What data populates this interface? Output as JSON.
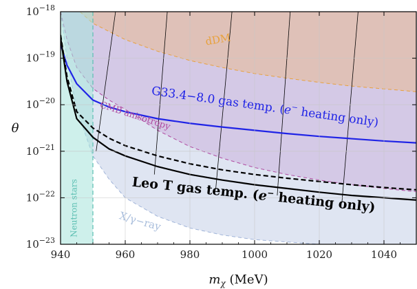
{
  "chart_data": {
    "type": "area",
    "xlabel": "m",
    "xlabel_sub": "χ",
    "xlabel_unit": "(MeV)",
    "ylabel": "θ",
    "xlim": [
      940,
      1050
    ],
    "ylim_log10": [
      -23,
      -18
    ],
    "x_ticks": [
      940,
      960,
      980,
      1000,
      1020,
      1040
    ],
    "x_tick_labels": [
      "940",
      "960",
      "980",
      "1000",
      "1020",
      "1040"
    ],
    "y_ticks": [
      {
        "exp": -23,
        "base": "10",
        "sup": "−23"
      },
      {
        "exp": -22,
        "base": "10",
        "sup": "−22"
      },
      {
        "exp": -21,
        "base": "10",
        "sup": "−21"
      },
      {
        "exp": -20,
        "base": "10",
        "sup": "−20"
      },
      {
        "exp": -19,
        "base": "10",
        "sup": "−19"
      },
      {
        "exp": -18,
        "base": "10",
        "sup": "−18"
      }
    ],
    "grid": true,
    "regions": [
      {
        "name": "X/γ-ray",
        "color": "#b7c6e2",
        "opacity": 0.45,
        "x": [
          940,
          942,
          945,
          950,
          955,
          960,
          970,
          980,
          990,
          1000,
          1010,
          1020,
          1030,
          1040,
          1050
        ],
        "log10_theta": [
          -18.0,
          -19.0,
          -20.1,
          -21.1,
          -21.6,
          -22.0,
          -22.4,
          -22.65,
          -22.8,
          -22.9,
          -22.95,
          -23.0,
          -23.0,
          -23.0,
          -23.0
        ]
      },
      {
        "name": "CMB anisotropy",
        "color": "#c8a6d8",
        "opacity": 0.45,
        "x": [
          940,
          942,
          945,
          950,
          955,
          960,
          970,
          980,
          990,
          1000,
          1010,
          1020,
          1030,
          1040,
          1050
        ],
        "log10_theta": [
          -18.0,
          -18.6,
          -19.2,
          -19.65,
          -19.9,
          -20.1,
          -20.55,
          -20.9,
          -21.15,
          -21.35,
          -21.5,
          -21.62,
          -21.72,
          -21.8,
          -21.87
        ]
      },
      {
        "name": "dDM",
        "color": "#e9b98a",
        "opacity": 0.5,
        "x": [
          946,
          950,
          960,
          970,
          980,
          990,
          1000,
          1010,
          1020,
          1030,
          1040,
          1050
        ],
        "log10_theta": [
          -18.0,
          -18.25,
          -18.6,
          -18.85,
          -19.05,
          -19.2,
          -19.33,
          -19.43,
          -19.52,
          -19.6,
          -19.66,
          -19.72
        ]
      },
      {
        "name": "Neutron stars",
        "color": "#a6e3db",
        "opacity": 0.55,
        "x_range": [
          940,
          950
        ]
      }
    ],
    "series": [
      {
        "name": "G33.4−8.0 gas temp. (e⁻ heating only)",
        "color": "#1f23e6",
        "style": "solid",
        "x": [
          940,
          942,
          945,
          950,
          955,
          960,
          970,
          980,
          990,
          1000,
          1010,
          1020,
          1030,
          1040,
          1050
        ],
        "log10_theta": [
          -18.7,
          -19.15,
          -19.55,
          -19.9,
          -20.05,
          -20.15,
          -20.3,
          -20.4,
          -20.48,
          -20.55,
          -20.62,
          -20.68,
          -20.73,
          -20.78,
          -20.82
        ]
      },
      {
        "name": "Leo T dashed",
        "color": "#000000",
        "style": "dashed",
        "x": [
          940,
          942,
          945,
          950,
          955,
          960,
          970,
          980,
          990,
          1000,
          1010,
          1020,
          1030,
          1040,
          1050
        ],
        "log10_theta": [
          -18.5,
          -19.4,
          -20.15,
          -20.5,
          -20.72,
          -20.88,
          -21.1,
          -21.27,
          -21.4,
          -21.5,
          -21.58,
          -21.65,
          -21.72,
          -21.78,
          -21.83
        ]
      },
      {
        "name": "Leo T gas temp. (e⁻ heating only)",
        "color": "#000000",
        "style": "solid",
        "x": [
          940,
          942,
          945,
          950,
          955,
          960,
          970,
          980,
          990,
          1000,
          1010,
          1020,
          1030,
          1040,
          1050
        ],
        "log10_theta": [
          -18.55,
          -19.5,
          -20.3,
          -20.7,
          -20.95,
          -21.1,
          -21.33,
          -21.5,
          -21.62,
          -21.72,
          -21.8,
          -21.88,
          -21.95,
          -22.0,
          -22.05
        ]
      }
    ],
    "thin_lines": [
      {
        "x0": 951,
        "x1": 957,
        "y0": -21.0,
        "y1": -18.0
      },
      {
        "x0": 969,
        "x1": 973,
        "y0": -21.5,
        "y1": -18.0
      },
      {
        "x0": 988,
        "x1": 993,
        "y0": -21.8,
        "y1": -18.0
      },
      {
        "x0": 1007,
        "x1": 1011,
        "y0": -21.95,
        "y1": -18.0
      },
      {
        "x0": 1027,
        "x1": 1032,
        "y0": -22.1,
        "y1": -18.0
      }
    ],
    "annotations": [
      {
        "key": "ddm",
        "text": "dDM",
        "x": 985,
        "log10_theta": -18.72,
        "color": "#e8a13c",
        "size": 15,
        "rotate": -10
      },
      {
        "key": "g33",
        "text_main": "G33.4−8.0 gas temp. (",
        "text_e": "e",
        "text_sup": "−",
        "text_tail": " heating only)",
        "x": 968,
        "log10_theta": -19.78,
        "color": "#1f23e6",
        "size": 17,
        "rotate": 8
      },
      {
        "key": "cmb",
        "text": "CMB anisotropy",
        "x": 952,
        "log10_theta": -20.05,
        "color": "#b04aa0",
        "size": 13,
        "rotate": 18
      },
      {
        "key": "leo",
        "text_main": "Leo T gas temp. (",
        "text_e": "e",
        "text_sup": "−",
        "text_tail": " heating only)",
        "x": 962,
        "log10_theta": -21.75,
        "color": "#000000",
        "size": 19,
        "rotate": 6,
        "bold": true
      },
      {
        "key": "xray",
        "text": "X/γ−ray",
        "x": 958,
        "log10_theta": -22.45,
        "color": "#a9bedc",
        "size": 15,
        "rotate": 16
      },
      {
        "key": "ns",
        "text": "Neutron stars",
        "x": 945,
        "log10_theta": -22.85,
        "color": "#5bbfb2",
        "size": 12,
        "rotate": -90
      }
    ]
  }
}
